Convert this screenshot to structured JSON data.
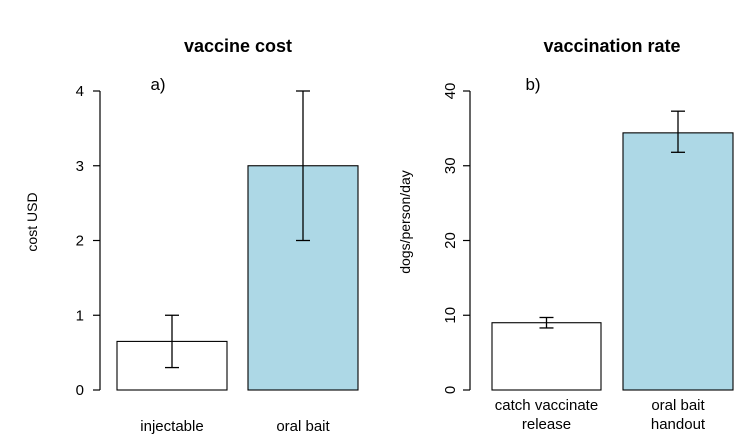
{
  "chart_data": [
    {
      "type": "bar",
      "title": "vaccine cost",
      "panel_label": "a)",
      "ylabel": "cost USD",
      "xlabel": "",
      "ylim": [
        0,
        4
      ],
      "yticks": [
        0,
        1,
        2,
        3,
        4
      ],
      "categories": [
        [
          "injectable"
        ],
        [
          "oral bait"
        ]
      ],
      "values": [
        0.65,
        3.0
      ],
      "error_low": [
        0.3,
        2.0
      ],
      "error_high": [
        1.0,
        4.0
      ],
      "colors": [
        "#ffffff",
        "#add8e6"
      ],
      "grid": false
    },
    {
      "type": "bar",
      "title": "vaccination rate",
      "panel_label": "b)",
      "ylabel": "dogs/person/day",
      "xlabel": "",
      "ylim": [
        0,
        40
      ],
      "yticks": [
        0,
        10,
        20,
        30,
        40
      ],
      "ytick_rotated": true,
      "categories": [
        [
          "catch vaccinate",
          "release"
        ],
        [
          "oral bait",
          "handout"
        ]
      ],
      "values": [
        9.0,
        34.4
      ],
      "error_low": [
        8.3,
        31.8
      ],
      "error_high": [
        9.7,
        37.3
      ],
      "colors": [
        "#ffffff",
        "#add8e6"
      ],
      "grid": false
    }
  ]
}
